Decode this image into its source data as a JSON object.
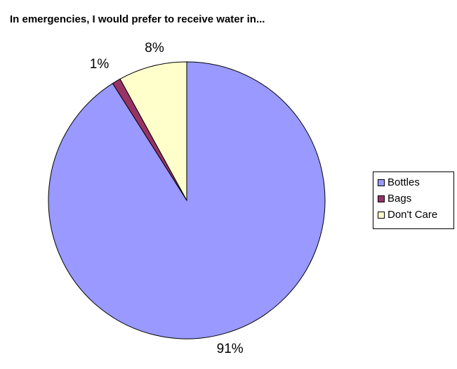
{
  "chart_data": {
    "type": "pie",
    "title": "In emergencies, I would prefer to receive water in...",
    "categories": [
      "Bottles",
      "Bags",
      "Don't Care"
    ],
    "values": [
      91,
      1,
      8
    ],
    "data_labels": [
      "91%",
      "1%",
      "8%"
    ],
    "colors": [
      "#9999FF",
      "#993366",
      "#FFFFCC"
    ],
    "legend_position": "right",
    "start_angle": "12-o'clock",
    "direction": "clockwise"
  }
}
